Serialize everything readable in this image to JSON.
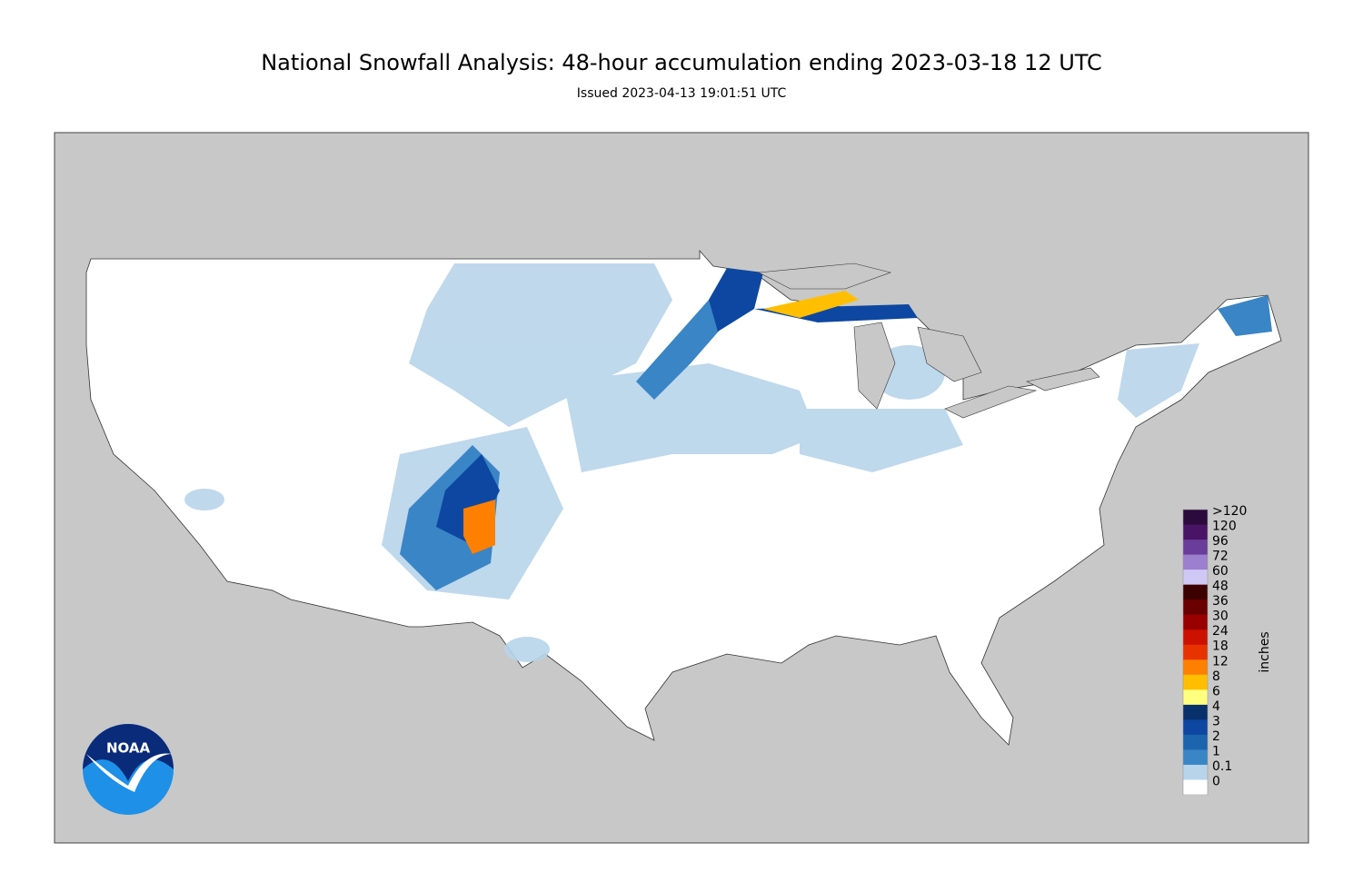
{
  "title": "National Snowfall Analysis: 48-hour accumulation ending 2023-03-18 12 UTC",
  "subtitle": "Issued 2023-04-13 19:01:51 UTC",
  "logo": "NOAA",
  "legend": {
    "unit": "inches",
    "labels": [
      ">120",
      "120",
      "96",
      "72",
      "60",
      "48",
      "36",
      "30",
      "24",
      "18",
      "12",
      "8",
      "6",
      "4",
      "3",
      "2",
      "1",
      "0.1",
      "0"
    ],
    "colors": [
      "#2b0a3d",
      "#4a1466",
      "#6a3d9a",
      "#9c7fcf",
      "#cfc8f5",
      "#3d0000",
      "#6b0000",
      "#990000",
      "#cc1100",
      "#e63300",
      "#ff8000",
      "#ffbf00",
      "#ffff80",
      "#08306b",
      "#0d47a1",
      "#1c64ad",
      "#3a85c6",
      "#b8d4ea",
      "#ffffff"
    ]
  }
}
